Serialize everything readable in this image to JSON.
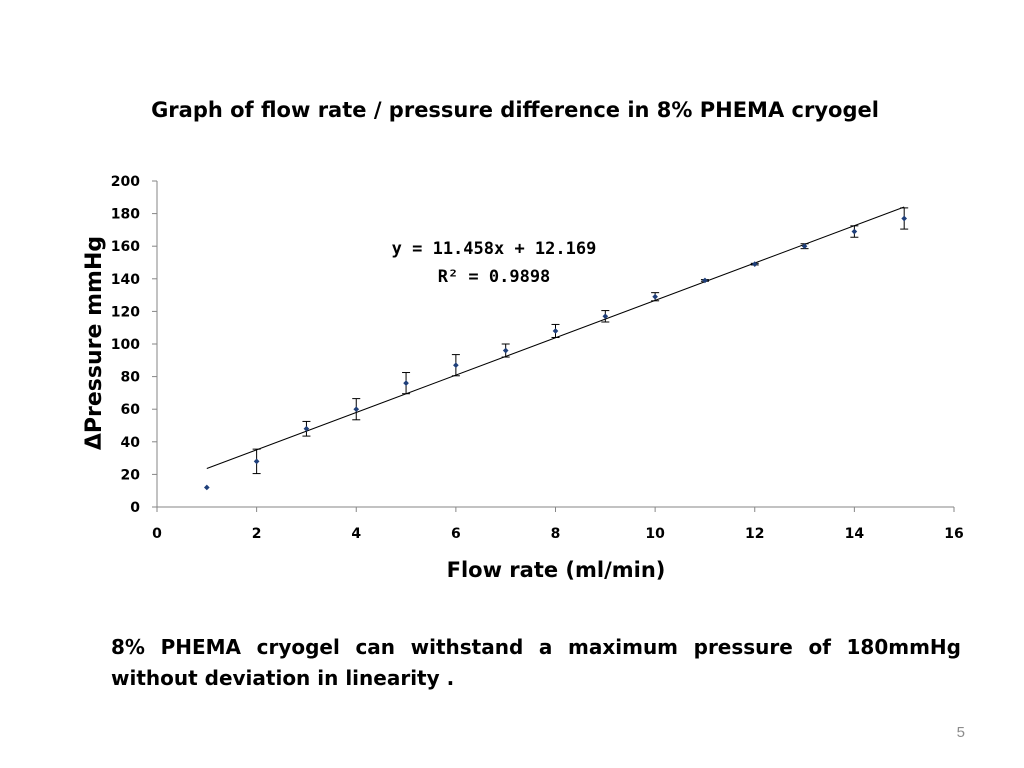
{
  "slide": {
    "caption": "8% PHEMA cryogel can withstand a maximum pressure of 180mmHg without deviation in linearity .",
    "page_number": "5"
  },
  "chart_data": {
    "type": "scatter",
    "title": "Graph of flow rate / pressure difference in 8% PHEMA cryogel",
    "xlabel": "Flow rate (ml/min)",
    "ylabel": "ΔPressure mmHg",
    "xlim": [
      0,
      16
    ],
    "ylim": [
      0,
      200
    ],
    "x_ticks": [
      0,
      2,
      4,
      6,
      8,
      10,
      12,
      14,
      16
    ],
    "y_ticks": [
      0,
      20,
      40,
      60,
      80,
      100,
      120,
      140,
      160,
      180,
      200
    ],
    "grid": false,
    "legend": "none",
    "marker_color": "#1f3f7a",
    "series": [
      {
        "x": [
          1,
          2,
          3,
          4,
          5,
          6,
          7,
          8,
          9,
          10,
          11,
          12,
          13,
          14,
          15
        ],
        "y": [
          12,
          28,
          48,
          60,
          76,
          87,
          96,
          108,
          117,
          129,
          139,
          149,
          160,
          169,
          177
        ],
        "error": [
          0,
          7.5,
          4.5,
          6.5,
          6.5,
          6.5,
          4,
          4,
          3.5,
          2.5,
          0.5,
          0.5,
          1.5,
          3.5,
          6.5
        ]
      }
    ],
    "trendline": {
      "slope": 11.458,
      "intercept": 12.169,
      "equation": "y = 11.458x + 12.169",
      "r_squared": "R² = 0.9898"
    }
  }
}
